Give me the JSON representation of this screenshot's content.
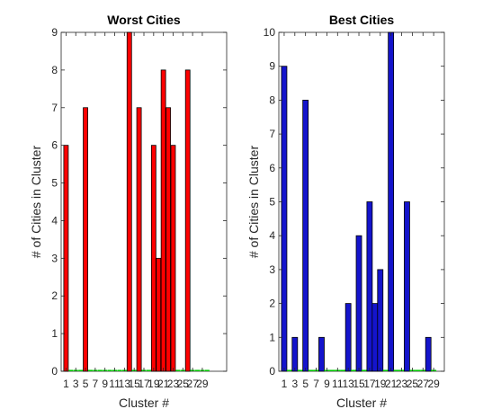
{
  "chart_data": [
    {
      "type": "bar",
      "title": "Worst Cities",
      "xlabel": "Cluster #",
      "ylabel": "# of Cities in Cluster",
      "ylim": [
        0,
        9
      ],
      "xlim": [
        0,
        34
      ],
      "yticks": [
        0,
        1,
        2,
        3,
        4,
        5,
        6,
        7,
        8,
        9
      ],
      "xticks": [
        1,
        3,
        5,
        7,
        9,
        11,
        13,
        15,
        17,
        19,
        21,
        23,
        25,
        27,
        29
      ],
      "grid": false,
      "colors": {
        "bar_fill": "#ff0000",
        "bar_edge": "#000000",
        "empty_marker": "#00cc00"
      },
      "x": [
        1,
        2,
        3,
        4,
        5,
        6,
        7,
        8,
        9,
        10,
        11,
        12,
        13,
        14,
        15,
        16,
        17,
        18,
        19,
        20,
        21,
        22,
        23,
        24,
        25,
        26,
        27,
        28,
        29,
        30
      ],
      "values": [
        6,
        0,
        0,
        0,
        7,
        0,
        0,
        0,
        0,
        0,
        0,
        0,
        0,
        9,
        0,
        7,
        0,
        0,
        6,
        3,
        8,
        7,
        6,
        0,
        0,
        8,
        0,
        0,
        0,
        0
      ]
    },
    {
      "type": "bar",
      "title": "Best Cities",
      "xlabel": "Cluster #",
      "ylabel": "# of Cities in Cluster",
      "ylim": [
        0,
        10
      ],
      "xlim": [
        0,
        31
      ],
      "yticks": [
        0,
        1,
        2,
        3,
        4,
        5,
        6,
        7,
        8,
        9,
        10
      ],
      "xticks": [
        1,
        3,
        5,
        7,
        9,
        11,
        13,
        15,
        17,
        19,
        21,
        23,
        25,
        27,
        29
      ],
      "grid": false,
      "colors": {
        "bar_fill": "#1414cc",
        "bar_edge": "#000000",
        "empty_marker": "#00cc00"
      },
      "x": [
        1,
        2,
        3,
        4,
        5,
        6,
        7,
        8,
        9,
        10,
        11,
        12,
        13,
        14,
        15,
        16,
        17,
        18,
        19,
        20,
        21,
        22,
        23,
        24,
        25,
        26,
        27,
        28,
        29
      ],
      "values": [
        9,
        0,
        1,
        0,
        8,
        0,
        0,
        1,
        0,
        0,
        0,
        0,
        2,
        0,
        4,
        0,
        5,
        2,
        3,
        0,
        10,
        0,
        0,
        5,
        0,
        0,
        0,
        1,
        0
      ]
    }
  ]
}
